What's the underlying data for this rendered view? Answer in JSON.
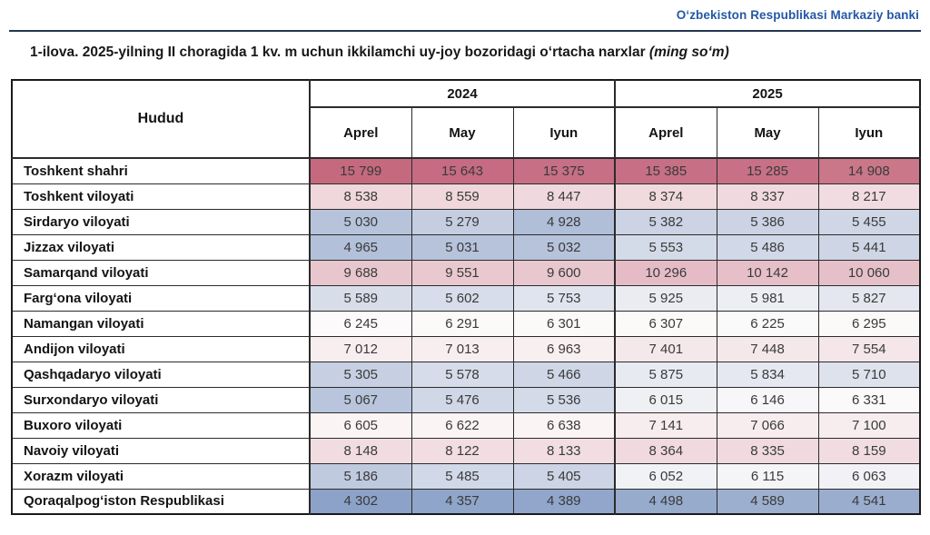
{
  "page": {
    "bank_name": "Oʻzbekiston Respublikasi Markaziy banki",
    "title_main": "1-ilova. 2025-yilning II choragida 1 kv. m uchun ikkilamchi uy-joy bozoridagi oʻrtacha narxlar",
    "title_unit": "(ming soʻm)"
  },
  "table": {
    "region_header": "Hudud",
    "year_groups": [
      {
        "label": "2024",
        "months": [
          "Aprel",
          "May",
          "Iyun"
        ]
      },
      {
        "label": "2025",
        "months": [
          "Aprel",
          "May",
          "Iyun"
        ]
      }
    ],
    "rows": [
      {
        "region": "Toshkent shahri",
        "values": [
          15799,
          15643,
          15375,
          15385,
          15285,
          14908
        ]
      },
      {
        "region": "Toshkent viloyati",
        "values": [
          8538,
          8559,
          8447,
          8374,
          8337,
          8217
        ]
      },
      {
        "region": "Sirdaryo viloyati",
        "values": [
          5030,
          5279,
          4928,
          5382,
          5386,
          5455
        ]
      },
      {
        "region": "Jizzax viloyati",
        "values": [
          4965,
          5031,
          5032,
          5553,
          5486,
          5441
        ]
      },
      {
        "region": "Samarqand viloyati",
        "values": [
          9688,
          9551,
          9600,
          10296,
          10142,
          10060
        ]
      },
      {
        "region": "Fargʻona viloyati",
        "values": [
          5589,
          5602,
          5753,
          5925,
          5981,
          5827
        ]
      },
      {
        "region": "Namangan viloyati",
        "values": [
          6245,
          6291,
          6301,
          6307,
          6225,
          6295
        ]
      },
      {
        "region": "Andijon viloyati",
        "values": [
          7012,
          7013,
          6963,
          7401,
          7448,
          7554
        ]
      },
      {
        "region": "Qashqadaryo viloyati",
        "values": [
          5305,
          5578,
          5466,
          5875,
          5834,
          5710
        ]
      },
      {
        "region": "Surxondaryo viloyati",
        "values": [
          5067,
          5476,
          5536,
          6015,
          6146,
          6331
        ]
      },
      {
        "region": "Buxoro viloyati",
        "values": [
          6605,
          6622,
          6638,
          7141,
          7066,
          7100
        ]
      },
      {
        "region": "Navoiy viloyati",
        "values": [
          8148,
          8122,
          8133,
          8364,
          8335,
          8159
        ]
      },
      {
        "region": "Xorazm viloyati",
        "values": [
          5186,
          5485,
          5405,
          6052,
          6115,
          6063
        ]
      },
      {
        "region": "Qoraqalpogʻiston Respublikasi",
        "values": [
          4302,
          4357,
          4389,
          4498,
          4589,
          4541
        ]
      }
    ]
  },
  "colors": {
    "bank_text": "#2458A6",
    "header_rule": "#25364F",
    "heatmap_low": "#8CA2C8",
    "heatmap_mid": "#FCFAFA",
    "heatmap_high": "#C5697F"
  }
}
